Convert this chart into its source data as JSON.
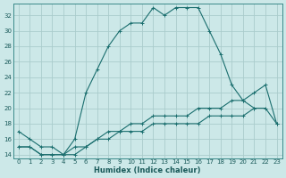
{
  "xlabel": "Humidex (Indice chaleur)",
  "bg_color": "#cce8e8",
  "grid_color": "#aacccc",
  "line_color": "#1a6e6e",
  "xlim": [
    -0.5,
    23.5
  ],
  "ylim": [
    13.5,
    33.5
  ],
  "yticks": [
    14,
    16,
    18,
    20,
    22,
    24,
    26,
    28,
    30,
    32
  ],
  "xticks": [
    0,
    1,
    2,
    3,
    4,
    5,
    6,
    7,
    8,
    9,
    10,
    11,
    12,
    13,
    14,
    15,
    16,
    17,
    18,
    19,
    20,
    21,
    22,
    23
  ],
  "series1_x": [
    0,
    1,
    2,
    3,
    4,
    5,
    6,
    7,
    8,
    9,
    10,
    11,
    12,
    13,
    14,
    15,
    16,
    17,
    18,
    19,
    20,
    21
  ],
  "series1_y": [
    17,
    16,
    15,
    15,
    14,
    16,
    22,
    25,
    28,
    30,
    31,
    31,
    33,
    32,
    33,
    33,
    33,
    30,
    27,
    23,
    21,
    20
  ],
  "series2_x": [
    0,
    1,
    2,
    3,
    4,
    5,
    6,
    7,
    8,
    9,
    10,
    11,
    12,
    13,
    14,
    15,
    16,
    17,
    18,
    19,
    20,
    21,
    22,
    23
  ],
  "series2_y": [
    15,
    15,
    14,
    14,
    14,
    15,
    15,
    16,
    17,
    17,
    18,
    18,
    19,
    19,
    19,
    19,
    20,
    20,
    20,
    21,
    21,
    22,
    23,
    18
  ],
  "series3_x": [
    0,
    1,
    2,
    3,
    4,
    5,
    6,
    7,
    8,
    9,
    10,
    11,
    12,
    13,
    14,
    15,
    16,
    17,
    18,
    19,
    20,
    21,
    22,
    23
  ],
  "series3_y": [
    15,
    15,
    14,
    14,
    14,
    14,
    15,
    16,
    16,
    17,
    17,
    17,
    18,
    18,
    18,
    18,
    18,
    19,
    19,
    19,
    19,
    20,
    20,
    18
  ]
}
